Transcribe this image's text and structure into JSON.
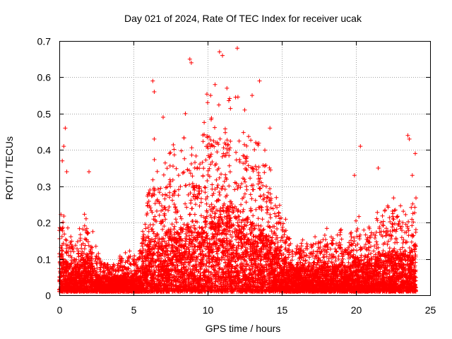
{
  "chart_data": {
    "type": "scatter",
    "title": "Day 021 of 2024, Rate Of TEC Index for receiver ucak",
    "xlabel": "GPS time / hours",
    "ylabel": "ROTI / TECUs",
    "xlim": [
      0,
      25
    ],
    "ylim": [
      0,
      0.7
    ],
    "x_ticks": [
      0,
      5,
      10,
      15,
      20,
      25
    ],
    "y_ticks": [
      0,
      0.1,
      0.2,
      0.3,
      0.4,
      0.5,
      0.6,
      0.7
    ],
    "grid": true,
    "marker": "plus",
    "color": "#ff0000",
    "envelope_x": [
      0,
      0.5,
      1,
      1.5,
      2,
      2.5,
      3,
      3.5,
      4,
      4.5,
      5,
      5.5,
      6,
      6.5,
      7,
      7.5,
      8,
      8.5,
      9,
      9.5,
      10,
      10.5,
      11,
      11.5,
      12,
      12.5,
      13,
      13.5,
      14,
      14.5,
      15,
      15.5,
      16,
      16.5,
      17,
      17.5,
      18,
      18.5,
      19,
      19.5,
      20,
      20.5,
      21,
      21.5,
      22,
      22.5,
      23,
      23.5,
      24
    ],
    "envelope_y": [
      0.2,
      0.15,
      0.12,
      0.17,
      0.18,
      0.1,
      0.08,
      0.07,
      0.08,
      0.1,
      0.09,
      0.12,
      0.25,
      0.3,
      0.28,
      0.33,
      0.3,
      0.35,
      0.33,
      0.3,
      0.45,
      0.43,
      0.42,
      0.42,
      0.43,
      0.38,
      0.35,
      0.33,
      0.3,
      0.25,
      0.2,
      0.15,
      0.12,
      0.12,
      0.13,
      0.12,
      0.15,
      0.13,
      0.14,
      0.12,
      0.18,
      0.15,
      0.16,
      0.2,
      0.18,
      0.22,
      0.2,
      0.18,
      0.25
    ],
    "outliers": [
      {
        "x": 0.2,
        "y": 0.37
      },
      {
        "x": 0.3,
        "y": 0.41
      },
      {
        "x": 0.4,
        "y": 0.46
      },
      {
        "x": 0.5,
        "y": 0.34
      },
      {
        "x": 2.0,
        "y": 0.34
      },
      {
        "x": 6.3,
        "y": 0.59
      },
      {
        "x": 6.4,
        "y": 0.56
      },
      {
        "x": 6.4,
        "y": 0.43
      },
      {
        "x": 7.0,
        "y": 0.49
      },
      {
        "x": 8.5,
        "y": 0.5
      },
      {
        "x": 8.8,
        "y": 0.65
      },
      {
        "x": 8.9,
        "y": 0.64
      },
      {
        "x": 10.2,
        "y": 0.55
      },
      {
        "x": 10.5,
        "y": 0.58
      },
      {
        "x": 10.8,
        "y": 0.67
      },
      {
        "x": 11.0,
        "y": 0.66
      },
      {
        "x": 11.3,
        "y": 0.57
      },
      {
        "x": 12.0,
        "y": 0.68
      },
      {
        "x": 12.5,
        "y": 0.51
      },
      {
        "x": 13.0,
        "y": 0.55
      },
      {
        "x": 13.5,
        "y": 0.59
      },
      {
        "x": 14.2,
        "y": 0.46
      },
      {
        "x": 20.3,
        "y": 0.41
      },
      {
        "x": 19.9,
        "y": 0.33
      },
      {
        "x": 21.5,
        "y": 0.35
      },
      {
        "x": 23.5,
        "y": 0.44
      },
      {
        "x": 23.6,
        "y": 0.43
      },
      {
        "x": 23.8,
        "y": 0.33
      },
      {
        "x": 24.0,
        "y": 0.39
      }
    ]
  }
}
